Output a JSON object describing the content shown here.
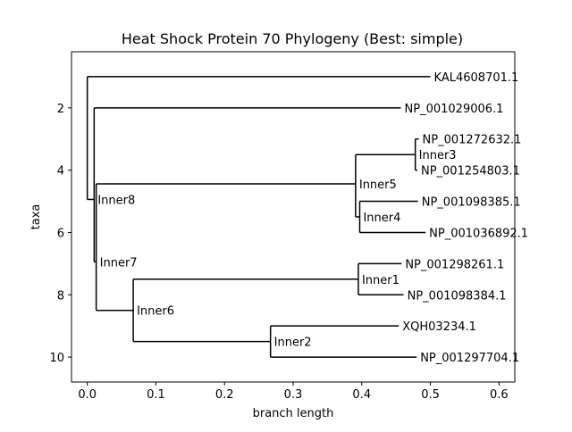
{
  "chart_data": {
    "type": "tree",
    "title": "Heat Shock Protein 70 Phylogeny (Best: simple)",
    "xlabel": "branch length",
    "ylabel": "taxa",
    "xlim": [
      -0.023,
      0.623
    ],
    "ylim": [
      10.8,
      0.2
    ],
    "xticks": [
      0.0,
      0.1,
      0.2,
      0.3,
      0.4,
      0.5,
      0.6
    ],
    "xtick_labels": [
      "0.0",
      "0.1",
      "0.2",
      "0.3",
      "0.4",
      "0.5",
      "0.6"
    ],
    "yticks": [
      2,
      4,
      6,
      8,
      10
    ],
    "ytick_labels": [
      "2",
      "4",
      "6",
      "8",
      "10"
    ],
    "grid": false,
    "legend": "none",
    "line_color": "#000000",
    "leaves": [
      {
        "name": "KAL4608701.1",
        "x": 0.5,
        "y": 1
      },
      {
        "name": "NP_001029006.1",
        "x": 0.457,
        "y": 2
      },
      {
        "name": "NP_001272632.1",
        "x": 0.483,
        "y": 3
      },
      {
        "name": "NP_001254803.1",
        "x": 0.481,
        "y": 4
      },
      {
        "name": "NP_001098385.1",
        "x": 0.482,
        "y": 5
      },
      {
        "name": "NP_001036892.1",
        "x": 0.493,
        "y": 6
      },
      {
        "name": "NP_001298261.1",
        "x": 0.458,
        "y": 7
      },
      {
        "name": "NP_001098384.1",
        "x": 0.461,
        "y": 8
      },
      {
        "name": "XQH03234.1",
        "x": 0.454,
        "y": 9
      },
      {
        "name": "NP_001297704.1",
        "x": 0.48,
        "y": 10
      }
    ],
    "internal_nodes": [
      {
        "name": "",
        "x": 0.0,
        "y": 2.97,
        "children": [
          "KAL4608701.1",
          "Inner8"
        ]
      },
      {
        "name": "Inner8",
        "x": 0.01,
        "y": 4.94,
        "children": [
          "NP_001029006.1",
          "Inner7"
        ]
      },
      {
        "name": "Inner7",
        "x": 0.013,
        "y": 6.94,
        "children": [
          "Inner5",
          "Inner6"
        ]
      },
      {
        "name": "Inner5",
        "x": 0.391,
        "y": 4.44,
        "children": [
          "Inner3",
          "Inner4"
        ]
      },
      {
        "name": "Inner3",
        "x": 0.478,
        "y": 3.5,
        "children": [
          "NP_001272632.1",
          "NP_001254803.1"
        ]
      },
      {
        "name": "Inner4",
        "x": 0.397,
        "y": 5.5,
        "children": [
          "NP_001098385.1",
          "NP_001036892.1"
        ]
      },
      {
        "name": "Inner6",
        "x": 0.067,
        "y": 8.5,
        "children": [
          "Inner1",
          "Inner2"
        ]
      },
      {
        "name": "Inner1",
        "x": 0.395,
        "y": 7.5,
        "children": [
          "NP_001298261.1",
          "NP_001098384.1"
        ]
      },
      {
        "name": "Inner2",
        "x": 0.267,
        "y": 9.5,
        "children": [
          "XQH03234.1",
          "NP_001297704.1"
        ]
      }
    ]
  }
}
